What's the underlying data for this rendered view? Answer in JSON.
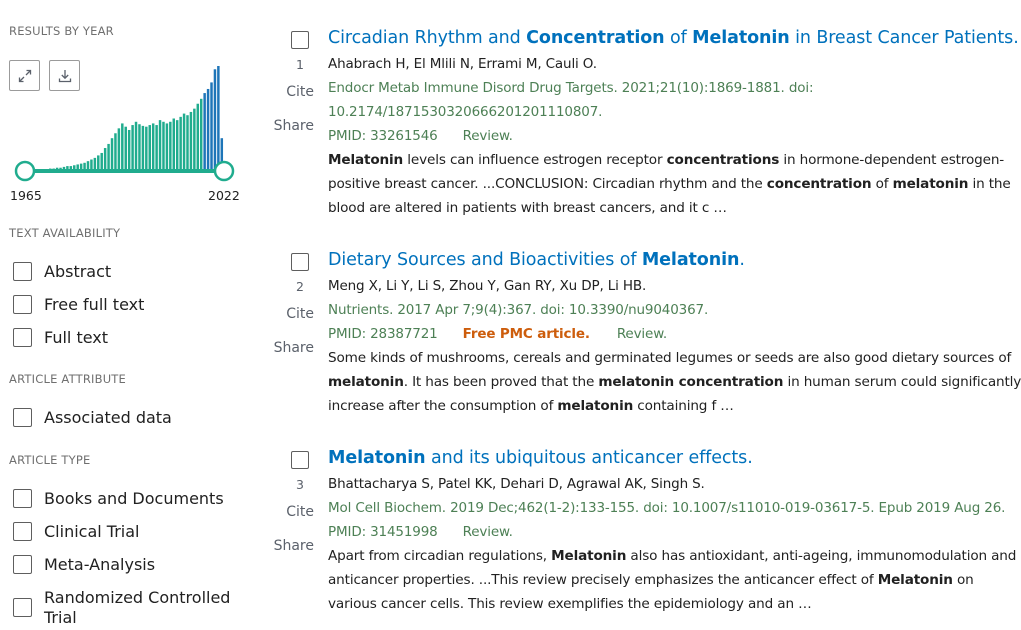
{
  "sidebar": {
    "results_by_year": {
      "heading": "RESULTS BY YEAR",
      "expand_icon": "expand-icon",
      "download_icon": "download-icon",
      "start_year": "1965",
      "end_year": "2022",
      "colors": {
        "bar": "#20ac8e",
        "bar_highlight": "#1e75b8",
        "track": "#20ac8e"
      }
    },
    "text_availability": {
      "heading": "TEXT AVAILABILITY",
      "options": [
        "Abstract",
        "Free full text",
        "Full text"
      ]
    },
    "article_attribute": {
      "heading": "ARTICLE ATTRIBUTE",
      "options": [
        "Associated data"
      ]
    },
    "article_type": {
      "heading": "ARTICLE TYPE",
      "options": [
        "Books and Documents",
        "Clinical Trial",
        "Meta-Analysis",
        "Randomized Controlled Trial"
      ]
    }
  },
  "chart_data": {
    "type": "bar",
    "title": "",
    "xlabel": "",
    "ylabel": "",
    "x_range": [
      "1965",
      "2022"
    ],
    "values": [
      1,
      1,
      1,
      1,
      2,
      2,
      2,
      3,
      3,
      4,
      4,
      5,
      6,
      6,
      7,
      8,
      9,
      10,
      12,
      14,
      16,
      19,
      22,
      28,
      33,
      40,
      46,
      52,
      58,
      54,
      50,
      56,
      60,
      57,
      55,
      54,
      56,
      58,
      56,
      62,
      60,
      58,
      60,
      64,
      62,
      66,
      70,
      68,
      72,
      76,
      82,
      88,
      95,
      100,
      108,
      124,
      128,
      40
    ],
    "highlight_from_index": 52,
    "grid": false
  },
  "results": [
    {
      "number": "1",
      "cite": "Cite",
      "share": "Share",
      "title_parts": [
        {
          "t": "Circadian Rhythm and ",
          "b": false
        },
        {
          "t": "Concentration",
          "b": true
        },
        {
          "t": " of ",
          "b": false
        },
        {
          "t": "Melatonin",
          "b": true
        },
        {
          "t": " in Breast Cancer Patients.",
          "b": false
        }
      ],
      "authors": "Ahabrach H, El Mlili N, Errami M, Cauli O.",
      "citation_lines": [
        "Endocr Metab Immune Disord Drug Targets. 2021;21(10):1869-1881. doi:",
        "10.2174/1871530320666201201110807."
      ],
      "pmid": "PMID: 33261546",
      "free_pmc": "",
      "pub_type": "Review.",
      "snippet_lines": [
        [
          {
            "t": "Melatonin",
            "b": true
          },
          {
            "t": " levels can influence estrogen receptor ",
            "b": false
          },
          {
            "t": "concentrations",
            "b": true
          },
          {
            "t": " in hormone-dependent estrogen-",
            "b": false
          }
        ],
        [
          {
            "t": "positive breast cancer. ...CONCLUSION: Circadian rhythm and the ",
            "b": false
          },
          {
            "t": "concentration",
            "b": true
          },
          {
            "t": " of ",
            "b": false
          },
          {
            "t": "melatonin",
            "b": true
          },
          {
            "t": " in the",
            "b": false
          }
        ],
        [
          {
            "t": "blood are altered in patients with breast cancers, and it c …",
            "b": false
          }
        ]
      ]
    },
    {
      "number": "2",
      "cite": "Cite",
      "share": "Share",
      "title_parts": [
        {
          "t": "Dietary Sources and Bioactivities of ",
          "b": false
        },
        {
          "t": "Melatonin",
          "b": true
        },
        {
          "t": ".",
          "b": false
        }
      ],
      "authors": "Meng X, Li Y, Li S, Zhou Y, Gan RY, Xu DP, Li HB.",
      "citation_lines": [
        "Nutrients. 2017 Apr 7;9(4):367. doi: 10.3390/nu9040367."
      ],
      "pmid": "PMID: 28387721",
      "free_pmc": "Free PMC article.",
      "pub_type": "Review.",
      "snippet_lines": [
        [
          {
            "t": "Some kinds of mushrooms, cereals and germinated legumes or seeds are also good dietary sources of",
            "b": false
          }
        ],
        [
          {
            "t": "melatonin",
            "b": true
          },
          {
            "t": ". It has been proved that the ",
            "b": false
          },
          {
            "t": "melatonin concentration",
            "b": true
          },
          {
            "t": " in human serum could significantly",
            "b": false
          }
        ],
        [
          {
            "t": "increase after the consumption of ",
            "b": false
          },
          {
            "t": "melatonin",
            "b": true
          },
          {
            "t": " containing f …",
            "b": false
          }
        ]
      ]
    },
    {
      "number": "3",
      "cite": "Cite",
      "share": "Share",
      "title_parts": [
        {
          "t": "Melatonin",
          "b": true
        },
        {
          "t": " and its ubiquitous anticancer effects.",
          "b": false
        }
      ],
      "authors": "Bhattacharya S, Patel KK, Dehari D, Agrawal AK, Singh S.",
      "citation_lines": [
        "Mol Cell Biochem. 2019 Dec;462(1-2):133-155. doi: 10.1007/s11010-019-03617-5. Epub 2019 Aug 26."
      ],
      "pmid": "PMID: 31451998",
      "free_pmc": "",
      "pub_type": "Review.",
      "snippet_lines": [
        [
          {
            "t": "Apart from circadian regulations, ",
            "b": false
          },
          {
            "t": "Melatonin",
            "b": true
          },
          {
            "t": " also has antioxidant, anti-ageing, immunomodulation and",
            "b": false
          }
        ],
        [
          {
            "t": "anticancer properties. ...This review precisely emphasizes the anticancer effect of ",
            "b": false
          },
          {
            "t": "Melatonin",
            "b": true
          },
          {
            "t": " on",
            "b": false
          }
        ],
        [
          {
            "t": "various cancer cells. This review exemplifies the epidemiology and an …",
            "b": false
          }
        ]
      ]
    }
  ]
}
